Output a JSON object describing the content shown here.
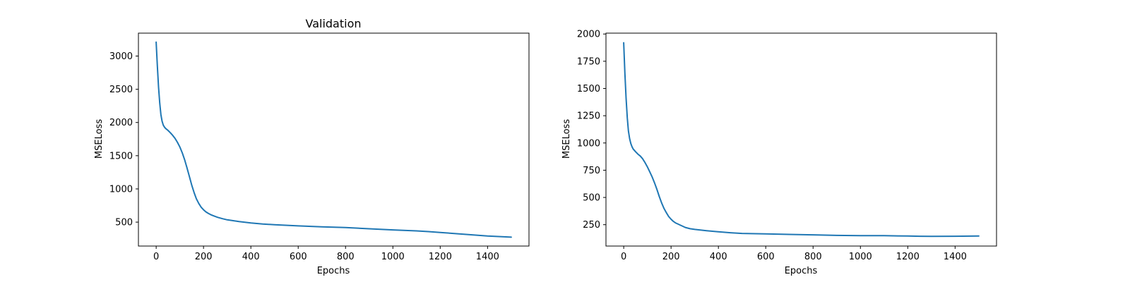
{
  "chart_data": [
    {
      "type": "line",
      "title": "Validation",
      "xlabel": "Epochs",
      "ylabel": "MSELoss",
      "xlim": [
        -75,
        1575
      ],
      "ylim": [
        140,
        3345
      ],
      "xticks": [
        0,
        200,
        400,
        600,
        800,
        1000,
        1200,
        1400
      ],
      "yticks": [
        500,
        1000,
        1500,
        2000,
        2500,
        3000
      ],
      "grid": false,
      "series": [
        {
          "color": "#1f77b4",
          "x": [
            0,
            5,
            10,
            15,
            20,
            25,
            30,
            35,
            40,
            50,
            60,
            70,
            80,
            90,
            100,
            110,
            120,
            130,
            140,
            150,
            160,
            170,
            180,
            190,
            200,
            210,
            220,
            230,
            240,
            250,
            260,
            280,
            300,
            350,
            400,
            450,
            500,
            600,
            700,
            800,
            900,
            1000,
            1100,
            1150,
            1200,
            1300,
            1400,
            1500
          ],
          "y": [
            3210,
            2850,
            2530,
            2290,
            2120,
            2020,
            1960,
            1930,
            1910,
            1880,
            1845,
            1805,
            1760,
            1700,
            1630,
            1545,
            1440,
            1320,
            1190,
            1060,
            945,
            850,
            780,
            725,
            685,
            655,
            632,
            613,
            598,
            585,
            572,
            552,
            535,
            508,
            488,
            472,
            460,
            443,
            430,
            418,
            400,
            383,
            368,
            358,
            345,
            318,
            292,
            274
          ]
        }
      ]
    },
    {
      "type": "line",
      "title": "",
      "xlabel": "Epochs",
      "ylabel": "MSELoss",
      "xlim": [
        -75,
        1575
      ],
      "ylim": [
        54,
        2008
      ],
      "xticks": [
        0,
        200,
        400,
        600,
        800,
        1000,
        1200,
        1400
      ],
      "yticks": [
        250,
        500,
        750,
        1000,
        1250,
        1500,
        1750,
        2000
      ],
      "grid": false,
      "series": [
        {
          "color": "#1f77b4",
          "x": [
            0,
            5,
            10,
            15,
            20,
            25,
            30,
            35,
            40,
            50,
            60,
            70,
            80,
            90,
            100,
            110,
            120,
            130,
            140,
            150,
            160,
            170,
            180,
            190,
            200,
            210,
            220,
            230,
            240,
            250,
            260,
            280,
            300,
            350,
            400,
            450,
            500,
            600,
            700,
            800,
            900,
            1000,
            1100,
            1200,
            1250,
            1300,
            1400,
            1500
          ],
          "y": [
            1920,
            1640,
            1410,
            1230,
            1110,
            1040,
            995,
            965,
            945,
            920,
            898,
            880,
            855,
            820,
            780,
            735,
            688,
            635,
            575,
            510,
            450,
            400,
            360,
            325,
            300,
            280,
            265,
            255,
            245,
            235,
            225,
            213,
            207,
            195,
            185,
            176,
            170,
            165,
            161,
            157,
            152,
            150,
            149,
            146,
            144,
            143,
            144,
            146
          ]
        }
      ]
    }
  ]
}
